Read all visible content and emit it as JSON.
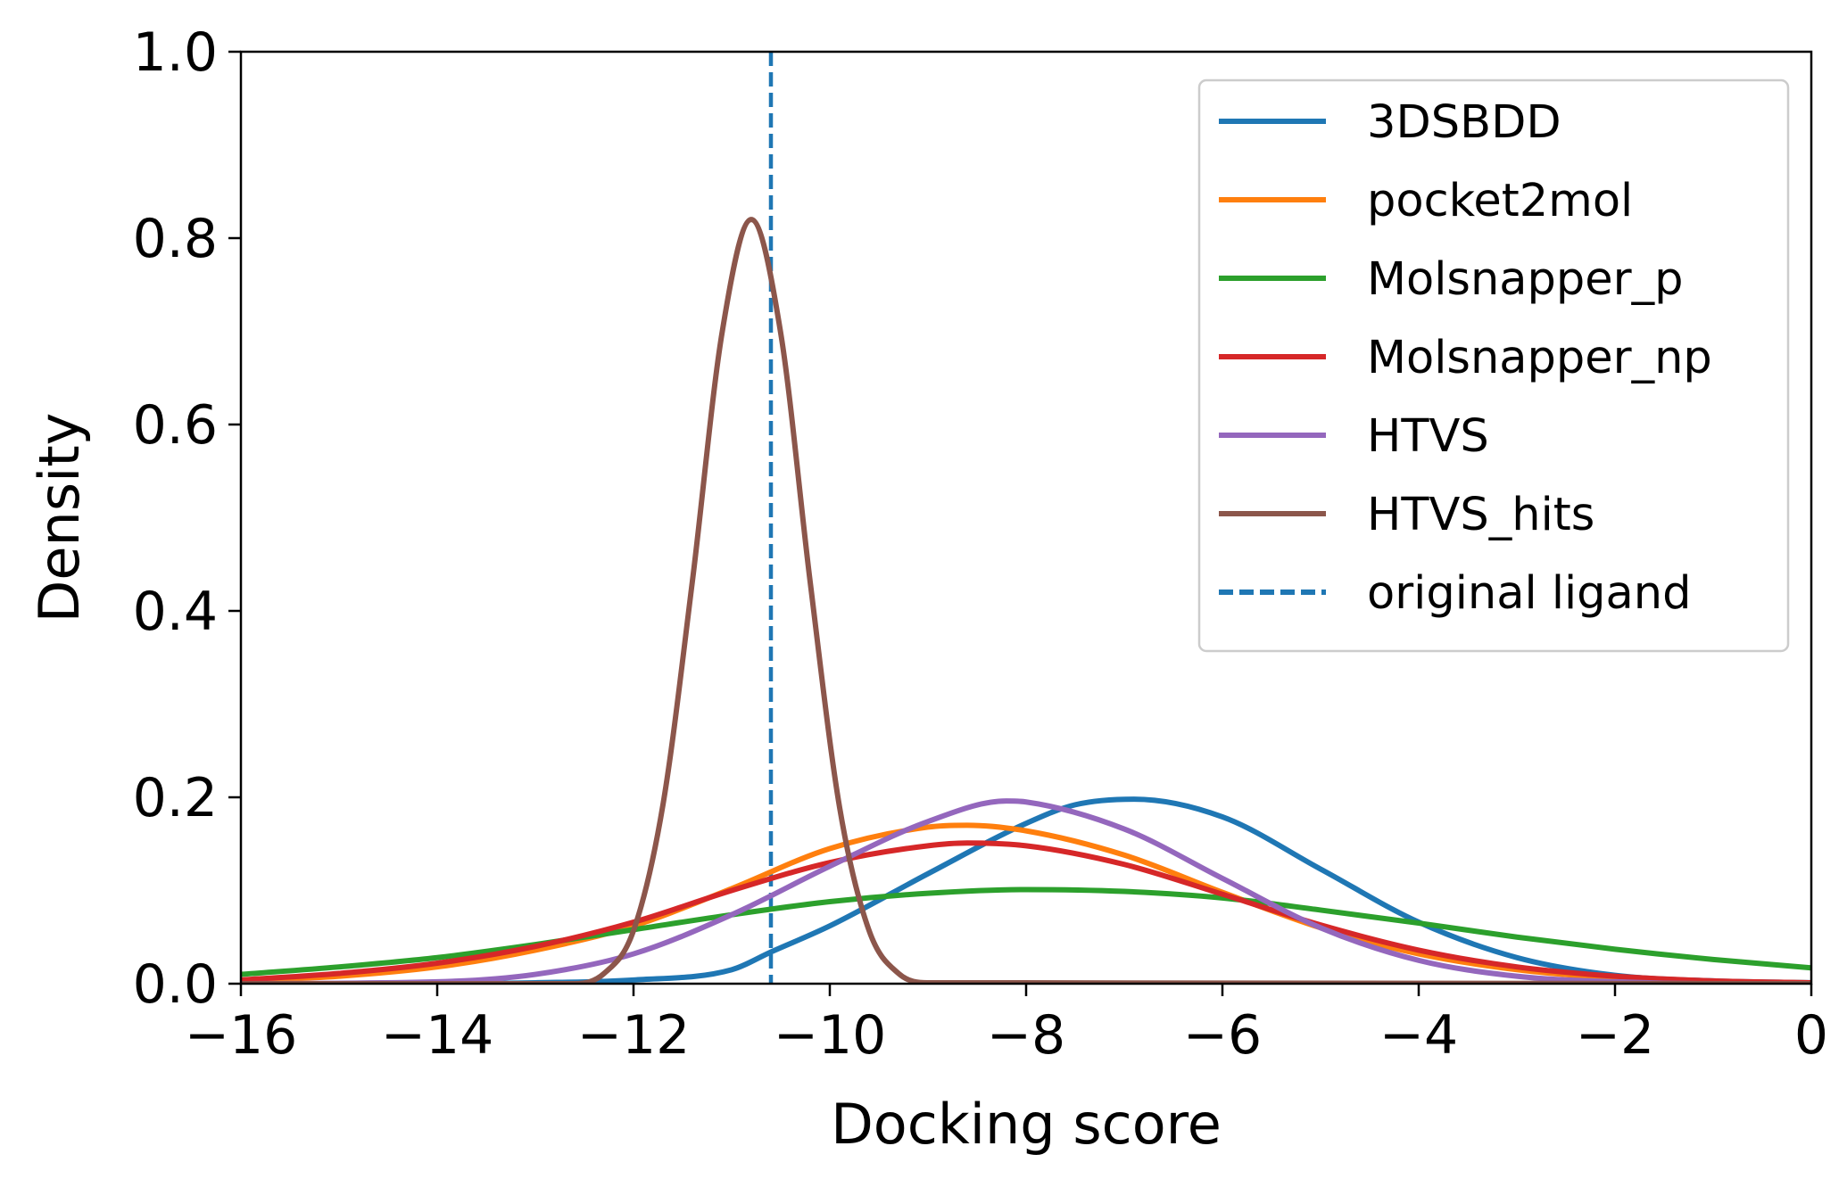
{
  "chart_data": {
    "type": "line",
    "xlabel": "Docking score",
    "ylabel": "Density",
    "xlim": [
      -16,
      0
    ],
    "ylim": [
      0,
      1.0
    ],
    "x_ticks": [
      -16,
      -14,
      -12,
      -10,
      -8,
      -6,
      -4,
      -2,
      0
    ],
    "x_tick_labels": [
      "−16",
      "−14",
      "−12",
      "−10",
      "−8",
      "−6",
      "−4",
      "−2",
      "0"
    ],
    "y_ticks": [
      0.0,
      0.2,
      0.4,
      0.6,
      0.8,
      1.0
    ],
    "y_tick_labels": [
      "0.0",
      "0.2",
      "0.4",
      "0.6",
      "0.8",
      "1.0"
    ],
    "grid": false,
    "legend_position": "top-right",
    "series": [
      {
        "name": "3DSBDD",
        "color": "#1f77b4",
        "style": "solid",
        "x": [
          -16,
          -14,
          -13,
          -12,
          -11,
          -10.6,
          -10,
          -9,
          -8,
          -7.5,
          -6.9,
          -6,
          -5,
          -4,
          -3,
          -2,
          -1,
          0
        ],
        "y": [
          0.0,
          0.0,
          0.001,
          0.004,
          0.015,
          0.034,
          0.062,
          0.118,
          0.172,
          0.192,
          0.198,
          0.179,
          0.123,
          0.066,
          0.028,
          0.009,
          0.003,
          0.001
        ]
      },
      {
        "name": "pocket2mol",
        "color": "#ff7f0e",
        "style": "solid",
        "x": [
          -16,
          -15,
          -14,
          -13,
          -12,
          -11,
          -10,
          -9,
          -8.6,
          -8,
          -7,
          -6,
          -5,
          -4,
          -3,
          -2,
          -1,
          0
        ],
        "y": [
          0.003,
          0.008,
          0.018,
          0.036,
          0.062,
          0.102,
          0.145,
          0.168,
          0.17,
          0.164,
          0.138,
          0.098,
          0.06,
          0.032,
          0.015,
          0.006,
          0.002,
          0.001
        ]
      },
      {
        "name": "Molsnapper_p",
        "color": "#2ca02c",
        "style": "solid",
        "x": [
          -16,
          -15,
          -14,
          -13,
          -12,
          -11,
          -10,
          -9,
          -8,
          -7,
          -6,
          -5,
          -4,
          -3,
          -2,
          -1,
          0
        ],
        "y": [
          0.01,
          0.018,
          0.028,
          0.042,
          0.058,
          0.074,
          0.088,
          0.097,
          0.101,
          0.099,
          0.092,
          0.079,
          0.065,
          0.05,
          0.037,
          0.026,
          0.017
        ]
      },
      {
        "name": "Molsnapper_np",
        "color": "#d62728",
        "style": "solid",
        "x": [
          -16,
          -15,
          -14,
          -13,
          -12,
          -11,
          -10,
          -9,
          -8.6,
          -8,
          -7,
          -6,
          -5,
          -4,
          -3,
          -2,
          -1,
          0
        ],
        "y": [
          0.004,
          0.011,
          0.022,
          0.04,
          0.066,
          0.1,
          0.13,
          0.148,
          0.151,
          0.148,
          0.128,
          0.096,
          0.063,
          0.036,
          0.018,
          0.008,
          0.003,
          0.001
        ]
      },
      {
        "name": "HTVS",
        "color": "#9467bd",
        "style": "solid",
        "x": [
          -16,
          -14,
          -13,
          -12,
          -11,
          -10,
          -9,
          -8.2,
          -8,
          -7,
          -6,
          -5,
          -4,
          -3,
          -2,
          -1,
          0
        ],
        "y": [
          0.0,
          0.002,
          0.01,
          0.032,
          0.074,
          0.126,
          0.174,
          0.196,
          0.195,
          0.166,
          0.113,
          0.06,
          0.025,
          0.008,
          0.002,
          0.0,
          0.0
        ]
      },
      {
        "name": "HTVS_hits",
        "color": "#8c564b",
        "style": "solid",
        "x": [
          -16,
          -12.6,
          -12.3,
          -12,
          -11.7,
          -11.4,
          -11.1,
          -10.8,
          -10.5,
          -10.2,
          -9.9,
          -9.6,
          -9.3,
          -9,
          0
        ],
        "y": [
          0.0,
          0.0,
          0.011,
          0.057,
          0.192,
          0.432,
          0.697,
          0.82,
          0.698,
          0.431,
          0.189,
          0.057,
          0.011,
          0.001,
          0.0
        ]
      }
    ],
    "reference_lines": [
      {
        "name": "original ligand",
        "orientation": "vertical",
        "x": -10.6,
        "color": "#1f77b4",
        "style": "dashed"
      }
    ]
  }
}
